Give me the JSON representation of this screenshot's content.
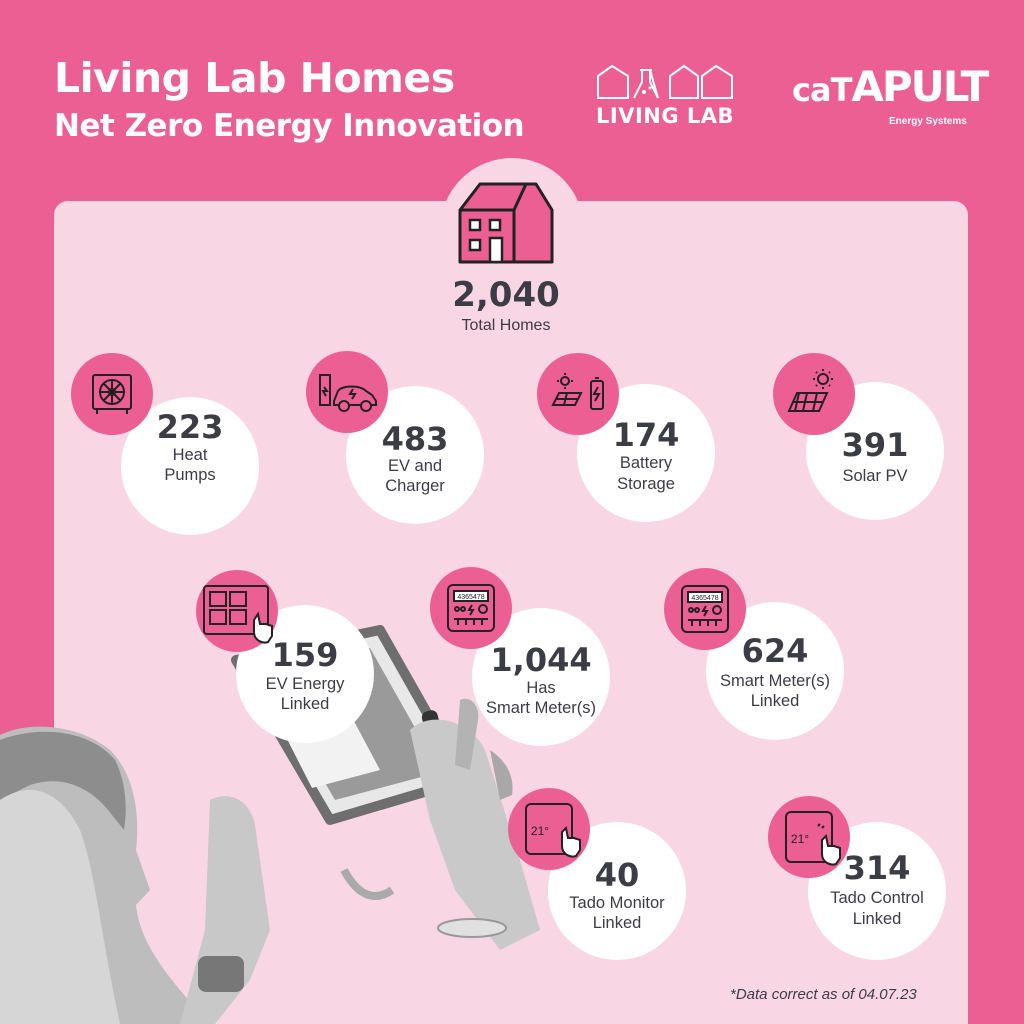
{
  "header": {
    "title": "Living Lab Homes",
    "subtitle": "Net Zero Energy Innovation"
  },
  "logos": {
    "living_lab": "LIVING LAB",
    "catapult_prefix": "ca",
    "catapult_t": "T",
    "catapult_suffix": "APULT",
    "catapult_sub": "Energy Systems"
  },
  "total": {
    "value": "2,040",
    "label": "Total Homes",
    "icon": "house-icon"
  },
  "stats": [
    {
      "value": "223",
      "label1": "Heat",
      "label2": "Pumps",
      "icon": "heat-pump-icon"
    },
    {
      "value": "483",
      "label1": "EV and",
      "label2": "Charger",
      "icon": "ev-charger-icon"
    },
    {
      "value": "174",
      "label1": "Battery",
      "label2": "Storage",
      "icon": "battery-storage-icon"
    },
    {
      "value": "391",
      "label1": "Solar PV",
      "label2": "",
      "icon": "solar-panel-icon"
    },
    {
      "value": "159",
      "label1": "EV Energy",
      "label2": "Linked",
      "icon": "touch-panel-icon"
    },
    {
      "value": "1,044",
      "label1": "Has",
      "label2": "Smart Meter(s)",
      "icon": "smart-meter-icon"
    },
    {
      "value": "624",
      "label1": "Smart Meter(s)",
      "label2": "Linked",
      "icon": "smart-meter-icon"
    },
    {
      "value": "40",
      "label1": "Tado Monitor",
      "label2": "Linked",
      "icon": "thermostat-icon"
    },
    {
      "value": "314",
      "label1": "Tado Control",
      "label2": "Linked",
      "icon": "thermostat-touch-icon"
    }
  ],
  "meter_reading": "4365478",
  "thermostat_reading": "21°",
  "footnote": "*Data correct as of  04.07.23",
  "colors": {
    "brand_pink": "#ec5f93",
    "panel_pink": "#f9d6e3",
    "text_dark": "#3c3c46"
  }
}
